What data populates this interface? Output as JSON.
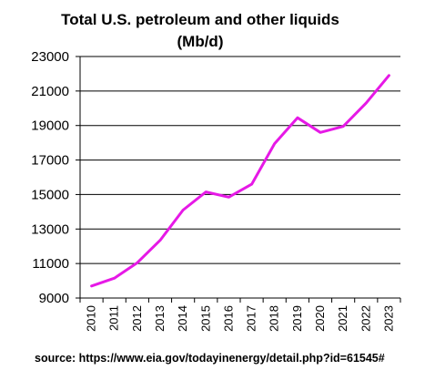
{
  "chart_data": {
    "type": "line",
    "title_line1": "Total U.S. petroleum and other liquids",
    "title_line2": "(Mb/d)",
    "xlabel": "",
    "ylabel": "",
    "x": [
      "2010",
      "2011",
      "2012",
      "2013",
      "2014",
      "2015",
      "2016",
      "2017",
      "2018",
      "2019",
      "2020",
      "2021",
      "2022",
      "2023"
    ],
    "series": [
      {
        "values": [
          9700,
          10150,
          11050,
          12350,
          14100,
          15150,
          14850,
          15600,
          17950,
          19450,
          18600,
          18950,
          20300,
          21900
        ],
        "color": "#e619e6"
      }
    ],
    "ylim": [
      9000,
      23000
    ],
    "y_ticks": [
      "9000",
      "11000",
      "13000",
      "15000",
      "17000",
      "19000",
      "21000",
      "23000"
    ],
    "grid": "horizontal"
  },
  "source": "source: https://www.eia.gov/todayinenergy/detail.php?id=61545#"
}
